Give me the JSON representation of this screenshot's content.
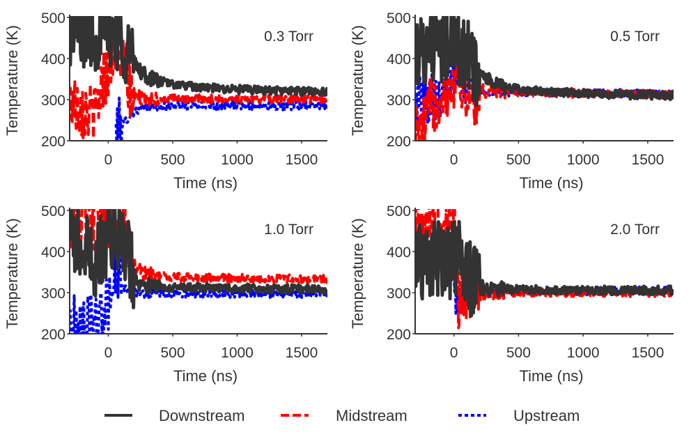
{
  "colors": {
    "downstream": "#333333",
    "midstream": "#ff0000",
    "upstream": "#0000ff",
    "axis": "#333333"
  },
  "legend": [
    {
      "key": "downstream",
      "label": "Downstream",
      "dash": "solid"
    },
    {
      "key": "midstream",
      "label": "Midstream",
      "dash": "dashed"
    },
    {
      "key": "upstream",
      "label": "Upstream",
      "dash": "dotted"
    }
  ],
  "chart_data": [
    {
      "type": "line",
      "panel_label": "0.3 Torr",
      "xlabel": "Time (ns)",
      "ylabel": "Temperature (K)",
      "xlim": [
        -300,
        1700
      ],
      "ylim": [
        200,
        500
      ],
      "xticks": [
        0,
        500,
        1000,
        1500
      ],
      "yticks": [
        200,
        300,
        400,
        500
      ],
      "grid": false,
      "series": [
        {
          "name": "Upstream",
          "noisy": true,
          "x": [
            60,
            100,
            150,
            200,
            250,
            300,
            400,
            500,
            700,
            1000,
            1300,
            1700
          ],
          "y": [
            220,
            235,
            255,
            270,
            278,
            282,
            283,
            284,
            285,
            286,
            285,
            285
          ]
        },
        {
          "name": "Midstream",
          "noisy": true,
          "x": [
            -300,
            -200,
            -100,
            -50,
            0,
            50,
            100,
            150,
            200,
            250,
            300,
            400,
            500,
            700,
            1000,
            1300,
            1700
          ],
          "y": [
            300,
            280,
            260,
            340,
            380,
            440,
            400,
            330,
            310,
            305,
            303,
            302,
            302,
            302,
            302,
            302,
            302
          ]
        },
        {
          "name": "Downstream",
          "noisy": true,
          "x": [
            -300,
            -200,
            -100,
            0,
            50,
            100,
            150,
            200,
            250,
            300,
            400,
            500,
            700,
            1000,
            1300,
            1700
          ],
          "y": [
            470,
            470,
            460,
            470,
            470,
            450,
            420,
            390,
            370,
            355,
            345,
            338,
            330,
            325,
            322,
            320
          ]
        }
      ]
    },
    {
      "type": "line",
      "panel_label": "0.5 Torr",
      "xlabel": "Time (ns)",
      "ylabel": "Temperature (K)",
      "xlim": [
        -300,
        1700
      ],
      "ylim": [
        200,
        500
      ],
      "xticks": [
        0,
        500,
        1000,
        1500
      ],
      "yticks": [
        200,
        300,
        400,
        500
      ],
      "grid": false,
      "series": [
        {
          "name": "Upstream",
          "noisy": true,
          "x": [
            -300,
            -100,
            0,
            50,
            100,
            150,
            200,
            250,
            300,
            400,
            500,
            700,
            1000,
            1300,
            1700
          ],
          "y": [
            300,
            330,
            380,
            400,
            350,
            330,
            322,
            320,
            318,
            318,
            318,
            317,
            316,
            315,
            314
          ]
        },
        {
          "name": "Midstream",
          "noisy": true,
          "x": [
            -300,
            -250,
            -200,
            -100,
            0,
            50,
            100,
            150,
            200,
            250,
            300,
            400,
            500,
            700,
            1000,
            1300,
            1700
          ],
          "y": [
            230,
            220,
            270,
            320,
            350,
            360,
            300,
            310,
            318,
            320,
            322,
            320,
            318,
            316,
            315,
            314,
            312
          ]
        },
        {
          "name": "Downstream",
          "noisy": true,
          "x": [
            -300,
            -200,
            -100,
            0,
            50,
            100,
            150,
            200,
            250,
            300,
            400,
            500,
            700,
            1000,
            1300,
            1700
          ],
          "y": [
            420,
            440,
            420,
            440,
            420,
            400,
            380,
            365,
            350,
            340,
            332,
            325,
            320,
            315,
            312,
            310
          ]
        }
      ]
    },
    {
      "type": "line",
      "panel_label": "1.0 Torr",
      "xlabel": "Time (ns)",
      "ylabel": "Temperature (K)",
      "xlim": [
        -300,
        1700
      ],
      "ylim": [
        200,
        500
      ],
      "xticks": [
        0,
        500,
        1000,
        1500
      ],
      "yticks": [
        200,
        300,
        400,
        500
      ],
      "grid": false,
      "series": [
        {
          "name": "Upstream",
          "noisy": true,
          "x": [
            -300,
            -200,
            -100,
            -50,
            0,
            30,
            60,
            100,
            150,
            200,
            300,
            500,
            700,
            1000,
            1300,
            1700
          ],
          "y": [
            220,
            215,
            225,
            240,
            270,
            330,
            360,
            320,
            305,
            300,
            298,
            298,
            298,
            298,
            298,
            298
          ]
        },
        {
          "name": "Midstream",
          "noisy": true,
          "x": [
            -300,
            -200,
            -100,
            0,
            100,
            150,
            200,
            250,
            300,
            400,
            500,
            700,
            1000,
            1300,
            1700
          ],
          "y": [
            470,
            480,
            480,
            480,
            470,
            420,
            370,
            350,
            345,
            340,
            338,
            336,
            335,
            334,
            333
          ]
        },
        {
          "name": "Downstream",
          "noisy": true,
          "x": [
            -300,
            -200,
            -100,
            0,
            50,
            100,
            150,
            200,
            250,
            300,
            400,
            500,
            700,
            1000,
            1300,
            1700
          ],
          "y": [
            440,
            400,
            380,
            430,
            460,
            440,
            400,
            340,
            320,
            318,
            315,
            313,
            312,
            311,
            310,
            308
          ]
        }
      ]
    },
    {
      "type": "line",
      "panel_label": "2.0 Torr",
      "xlabel": "Time (ns)",
      "ylabel": "Temperature (K)",
      "xlim": [
        -300,
        1700
      ],
      "ylim": [
        200,
        500
      ],
      "xticks": [
        0,
        500,
        1000,
        1500
      ],
      "yticks": [
        200,
        300,
        400,
        500
      ],
      "grid": false,
      "series": [
        {
          "name": "Upstream",
          "noisy": true,
          "x": [
            0,
            50,
            100,
            150,
            200,
            300,
            500,
            700,
            1000,
            1300,
            1700
          ],
          "y": [
            310,
            308,
            306,
            305,
            305,
            304,
            304,
            304,
            304,
            304,
            304
          ]
        },
        {
          "name": "Midstream",
          "noisy": true,
          "x": [
            -300,
            -200,
            -100,
            0,
            20,
            40,
            60,
            100,
            150,
            200,
            300,
            500,
            700,
            1000,
            1300,
            1700
          ],
          "y": [
            470,
            470,
            470,
            460,
            400,
            240,
            300,
            295,
            297,
            298,
            299,
            300,
            300,
            300,
            300,
            300
          ]
        },
        {
          "name": "Downstream",
          "noisy": true,
          "x": [
            -300,
            -200,
            -100,
            0,
            50,
            100,
            120,
            150,
            200,
            300,
            500,
            700,
            1000,
            1300,
            1700
          ],
          "y": [
            380,
            380,
            380,
            380,
            380,
            360,
            340,
            320,
            312,
            310,
            308,
            307,
            306,
            306,
            306
          ]
        }
      ]
    }
  ]
}
